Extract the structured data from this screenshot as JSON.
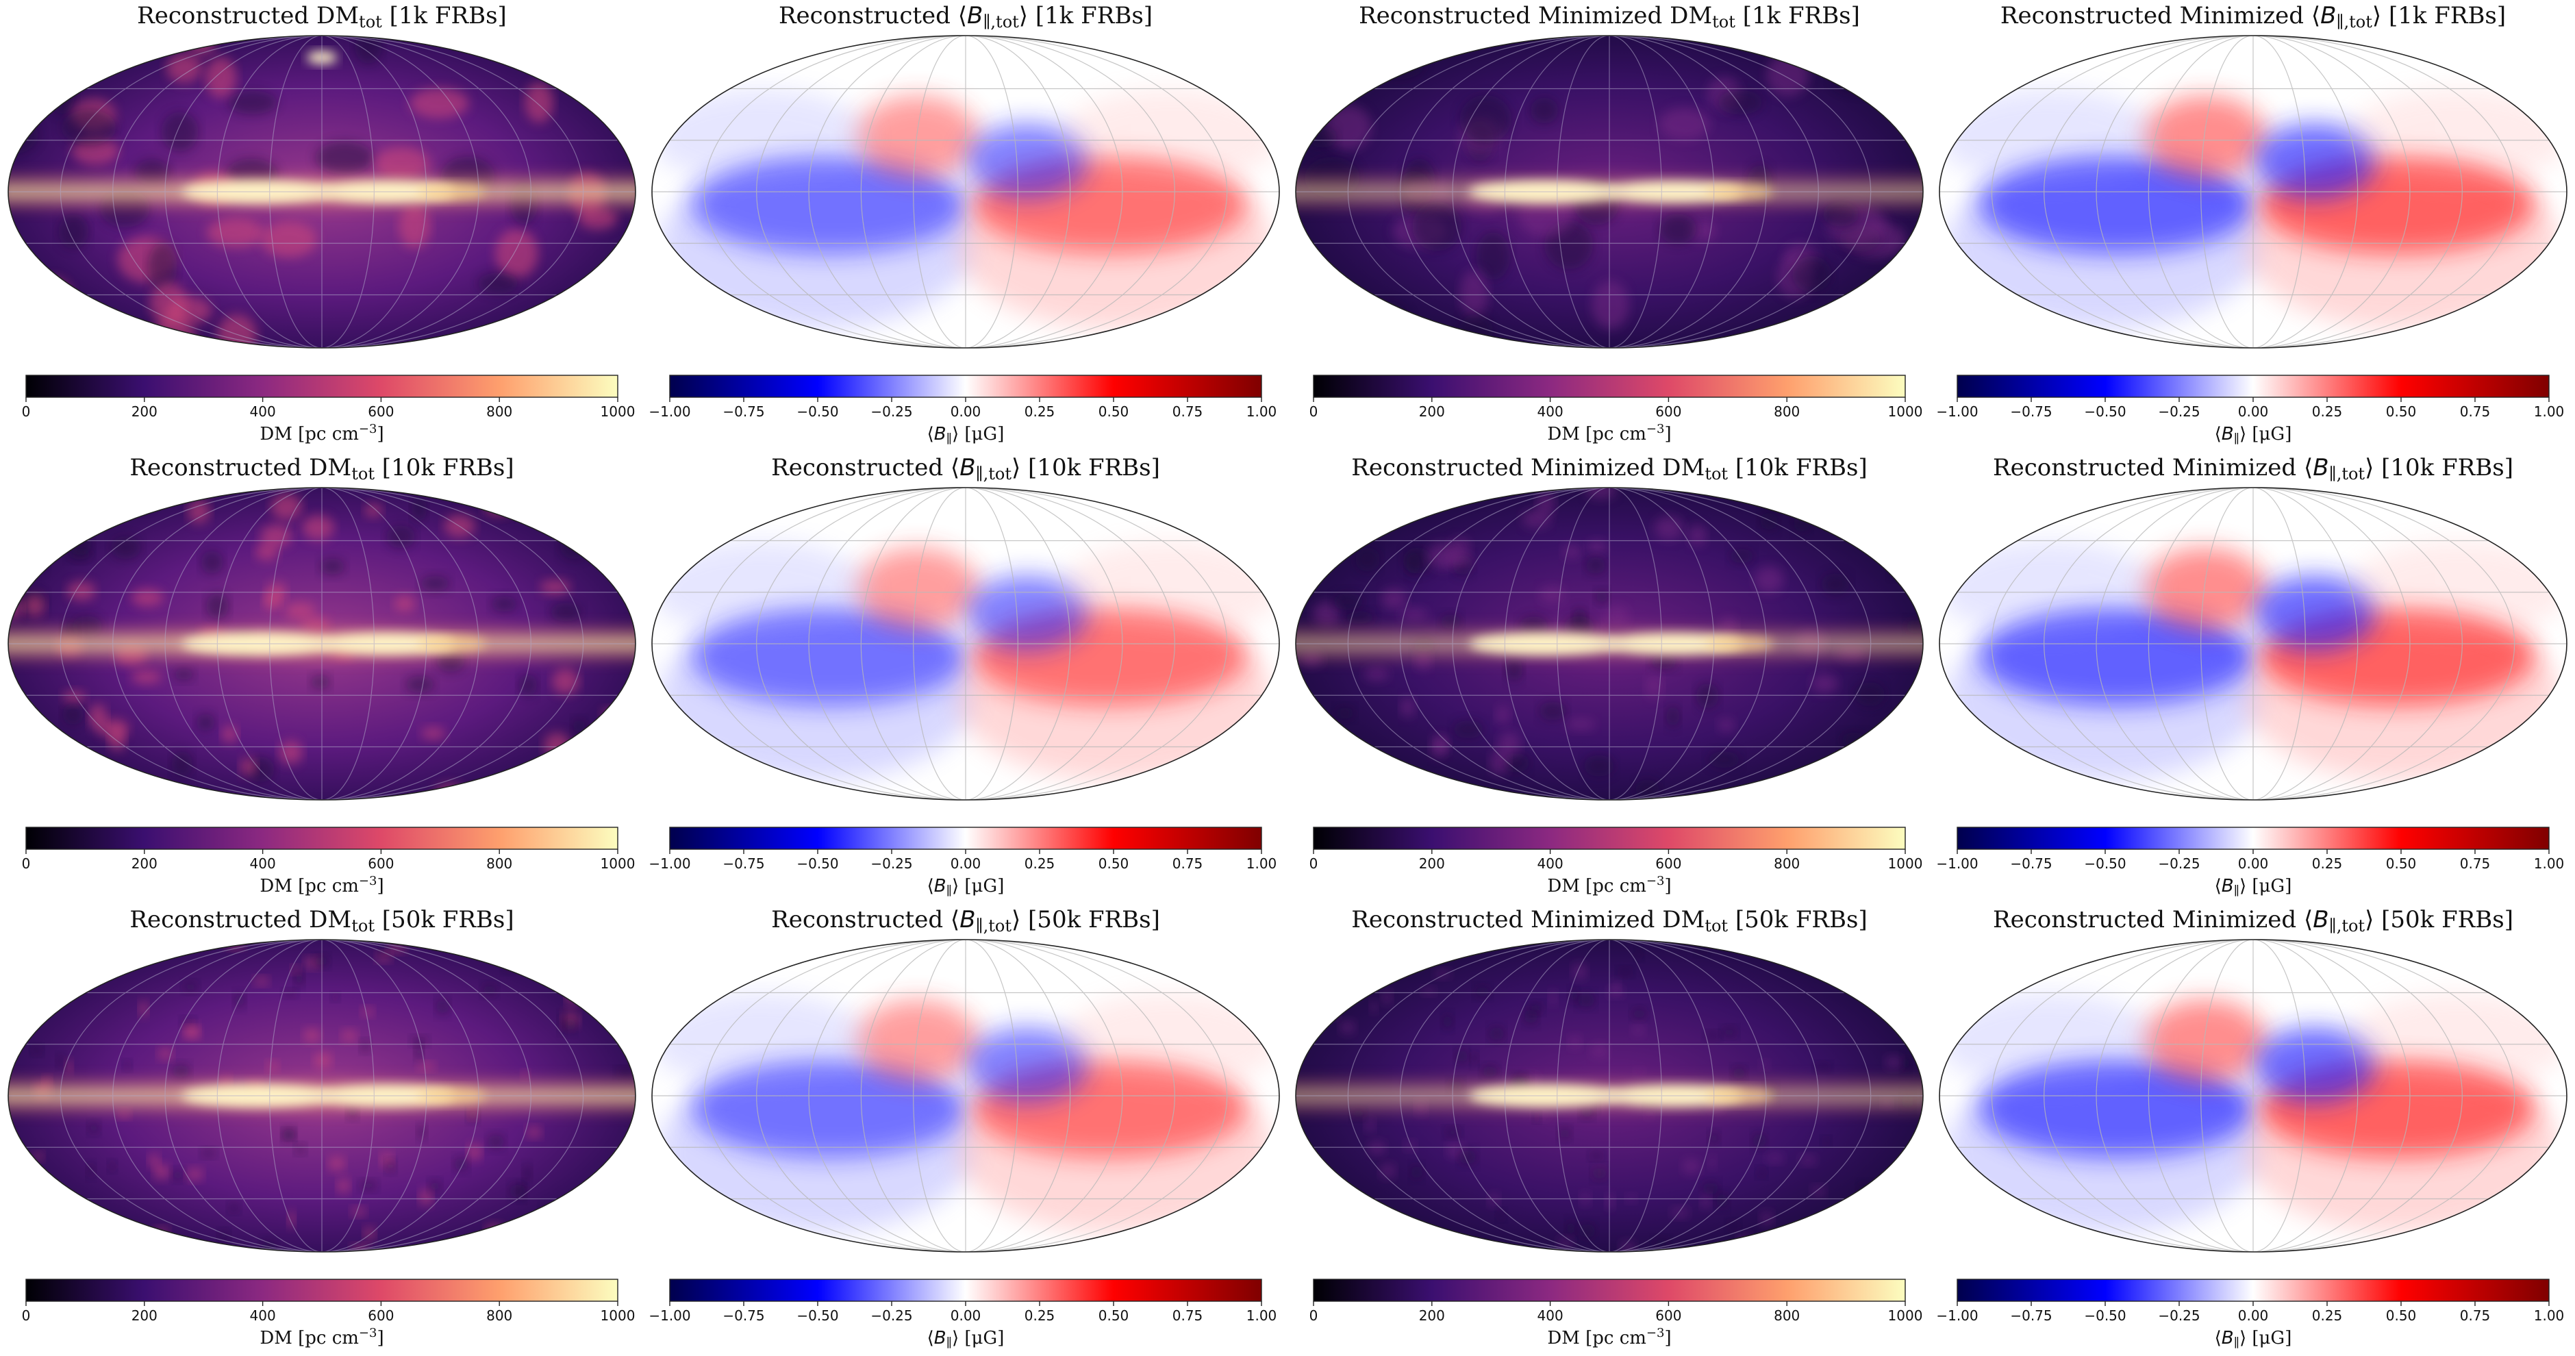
{
  "figure": {
    "rows": [
      {
        "count": "1k FRBs",
        "panels": [
          {
            "id": "r1c1",
            "kind": "dm",
            "prefix": "Reconstructed ",
            "quantity": "DM",
            "sub": "tot",
            "suffix": "[1k FRBs]"
          },
          {
            "id": "r1c2",
            "kind": "b",
            "prefix": "Reconstructed ",
            "quantity": "B",
            "sub": "∥,tot",
            "suffix": "[1k FRBs]"
          },
          {
            "id": "r1c3",
            "kind": "dm",
            "prefix": "Reconstructed Minimized ",
            "quantity": "DM",
            "sub": "tot",
            "suffix": "[1k FRBs]"
          },
          {
            "id": "r1c4",
            "kind": "b",
            "prefix": "Reconstructed Minimized ",
            "quantity": "B",
            "sub": "∥,tot",
            "suffix": "[1k FRBs]"
          }
        ]
      },
      {
        "count": "10k FRBs",
        "panels": [
          {
            "id": "r2c1",
            "kind": "dm",
            "prefix": "Reconstructed ",
            "quantity": "DM",
            "sub": "tot",
            "suffix": "[10k FRBs]"
          },
          {
            "id": "r2c2",
            "kind": "b",
            "prefix": "Reconstructed ",
            "quantity": "B",
            "sub": "∥,tot",
            "suffix": "[10k FRBs]"
          },
          {
            "id": "r2c3",
            "kind": "dm",
            "prefix": "Reconstructed Minimized ",
            "quantity": "DM",
            "sub": "tot",
            "suffix": "[10k FRBs]"
          },
          {
            "id": "r2c4",
            "kind": "b",
            "prefix": "Reconstructed Minimized ",
            "quantity": "B",
            "sub": "∥,tot",
            "suffix": "[10k FRBs]"
          }
        ]
      },
      {
        "count": "50k FRBs",
        "panels": [
          {
            "id": "r3c1",
            "kind": "dm",
            "prefix": "Reconstructed ",
            "quantity": "DM",
            "sub": "tot",
            "suffix": "[50k FRBs]"
          },
          {
            "id": "r3c2",
            "kind": "b",
            "prefix": "Reconstructed ",
            "quantity": "B",
            "sub": "∥,tot",
            "suffix": "[50k FRBs]"
          },
          {
            "id": "r3c3",
            "kind": "dm",
            "prefix": "Reconstructed Minimized ",
            "quantity": "DM",
            "sub": "tot",
            "suffix": "[50k FRBs]"
          },
          {
            "id": "r3c4",
            "kind": "b",
            "prefix": "Reconstructed Minimized ",
            "quantity": "B",
            "sub": "∥,tot",
            "suffix": "[50k FRBs]"
          }
        ]
      }
    ],
    "colorbars": {
      "dm": {
        "label_main": "DM [pc cm",
        "label_exp": "−3",
        "label_end": "]",
        "ticks": [
          "0",
          "200",
          "400",
          "600",
          "800",
          "1000"
        ],
        "range": [
          0,
          1000
        ],
        "colormap": "magma",
        "stops": [
          "#000004",
          "#3b0f70",
          "#8c2981",
          "#de4968",
          "#fe9f6d",
          "#fcfdbf"
        ]
      },
      "b": {
        "label_main": "B",
        "label_sub": "∥",
        "label_unit": " [μG]",
        "ticks": [
          "−1.00",
          "−0.75",
          "−0.50",
          "−0.25",
          "0.00",
          "0.25",
          "0.50",
          "0.75",
          "1.00"
        ],
        "range": [
          -1.0,
          1.0
        ],
        "colormap": "seismic",
        "stops": [
          "#00004d",
          "#0000ff",
          "#ffffff",
          "#ff0000",
          "#800000"
        ]
      }
    }
  }
}
